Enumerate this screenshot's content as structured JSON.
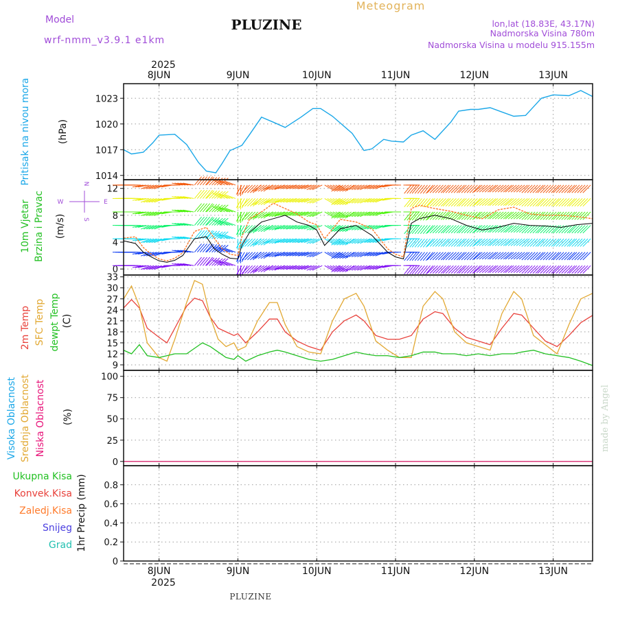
{
  "header": {
    "title": "PLUZINE",
    "meteogram": "Meteogram",
    "model_label": "Model",
    "model_name": "wrf-nmm_v3.9.1 e1km",
    "lonlat": "lon,lat (18.83E, 43.17N)",
    "elevation": "Nadmorska Visina 780m",
    "model_elevation": "Nadmorska Visina u modelu 915.155m",
    "year_top": "2025",
    "year_bottom": "2025",
    "footer": "PLUZINE",
    "watermark": "made by Angel"
  },
  "compass": {
    "N": "N",
    "E": "E",
    "S": "S",
    "W": "W"
  },
  "colors": {
    "pressure": "#1aa7e8",
    "temp_2m": "#e8403a",
    "temp_sfc": "#e2a832",
    "dewpoint": "#22c022",
    "wind_line": "#000000",
    "wind_gust": "#ff7a2a",
    "cloud_high": "#1aa7e8",
    "cloud_mid": "#e2a832",
    "cloud_low": "#e8157a",
    "precip_total": "#22c022",
    "precip_conv": "#e8403a",
    "precip_frozen": "#ff7a2a",
    "precip_snow": "#4a3ee0",
    "precip_graupel": "#22c0b0",
    "compass": "#a04cd8"
  },
  "chart_data": [
    {
      "type": "line",
      "id": "pressure",
      "ylabels": [
        "Pritisak na nivou mora",
        "(hPa)"
      ],
      "ylim": [
        1013.5,
        1024.7
      ],
      "yticks": [
        1014,
        1017,
        1020,
        1023
      ],
      "x_days": [
        7.55,
        7.65,
        7.8,
        7.92,
        8.0,
        8.2,
        8.35,
        8.5,
        8.6,
        8.72,
        8.8,
        8.9,
        9.0,
        9.05,
        9.15,
        9.3,
        9.45,
        9.6,
        9.8,
        9.95,
        10.05,
        10.2,
        10.45,
        10.6,
        10.7,
        10.85,
        10.95,
        11.1,
        11.2,
        11.35,
        11.5,
        11.7,
        11.8,
        11.95,
        12.05,
        12.2,
        12.35,
        12.5,
        12.65,
        12.75,
        12.85,
        13.0,
        13.2,
        13.35,
        13.5
      ],
      "series": [
        {
          "name": "",
          "values": [
            1017.0,
            1016.5,
            1016.7,
            1017.8,
            1018.7,
            1018.8,
            1017.6,
            1015.5,
            1014.5,
            1014.3,
            1015.4,
            1016.9,
            1017.3,
            1017.5,
            1018.8,
            1020.8,
            1020.2,
            1019.6,
            1020.8,
            1021.8,
            1021.8,
            1020.9,
            1018.9,
            1016.9,
            1017.1,
            1018.2,
            1018.0,
            1017.9,
            1018.7,
            1019.2,
            1018.2,
            1020.2,
            1021.5,
            1021.7,
            1021.7,
            1021.9,
            1021.4,
            1020.9,
            1021.0,
            1022.0,
            1023.0,
            1023.4,
            1023.3,
            1023.9,
            1023.2
          ]
        }
      ]
    },
    {
      "type": "line",
      "id": "wind",
      "ylabels": [
        "10m Vjetar",
        "Brzina i Pravac",
        "(m/s)"
      ],
      "ylim": [
        -0.9,
        13.3
      ],
      "yticks": [
        0,
        4,
        8,
        12
      ],
      "x_days": [
        7.55,
        7.7,
        7.8,
        7.9,
        8.0,
        8.1,
        8.2,
        8.3,
        8.45,
        8.6,
        8.7,
        8.8,
        8.9,
        9.0,
        9.05,
        9.15,
        9.3,
        9.45,
        9.6,
        9.75,
        9.9,
        10.0,
        10.1,
        10.3,
        10.5,
        10.7,
        10.9,
        11.0,
        11.1,
        11.2,
        11.3,
        11.5,
        11.7,
        11.9,
        12.1,
        12.3,
        12.5,
        12.7,
        12.9,
        13.1,
        13.3,
        13.5
      ],
      "series": [
        {
          "name": "",
          "values": [
            4.2,
            3.8,
            2.5,
            1.8,
            1.2,
            1.0,
            1.3,
            2.0,
            4.5,
            4.8,
            3.0,
            2.2,
            1.6,
            1.5,
            3.5,
            5.5,
            7.0,
            7.5,
            8.0,
            7.0,
            6.5,
            5.8,
            3.5,
            6.0,
            6.5,
            5.0,
            2.5,
            1.8,
            1.5,
            6.8,
            7.5,
            8.0,
            7.5,
            6.5,
            5.8,
            6.2,
            6.8,
            6.5,
            6.4,
            6.2,
            6.6,
            6.8
          ]
        },
        {
          "name": "",
          "values": [
            4.6,
            4.8,
            3.2,
            2.2,
            1.5,
            1.2,
            1.6,
            2.4,
            5.6,
            6.2,
            4.6,
            3.0,
            2.2,
            2.0,
            4.8,
            7.5,
            8.5,
            9.8,
            9.0,
            8.2,
            7.0,
            6.6,
            4.5,
            7.4,
            7.0,
            6.0,
            3.0,
            2.2,
            1.8,
            9.0,
            9.5,
            9.0,
            8.6,
            8.0,
            7.5,
            8.8,
            9.2,
            8.2,
            8.0,
            8.0,
            7.8,
            7.5
          ]
        }
      ],
      "directions_deg": [
        270,
        270,
        260,
        250,
        250,
        260,
        270,
        280,
        40,
        45,
        50,
        300,
        290,
        180,
        210,
        225,
        235,
        245,
        250,
        250,
        250,
        245,
        120,
        235,
        245,
        250,
        260,
        270,
        90,
        220,
        220,
        225,
        225,
        225,
        230,
        230,
        230,
        225,
        225,
        225,
        225,
        225
      ]
    },
    {
      "type": "line",
      "id": "temperature",
      "ylabels": [
        "2m Temp",
        "SFC Temp",
        "dewpt Temp",
        "(C)"
      ],
      "ylim": [
        7.5,
        33.5
      ],
      "yticks": [
        9,
        12,
        15,
        18,
        21,
        24,
        27,
        30,
        33
      ],
      "x_days": [
        7.55,
        7.65,
        7.75,
        7.85,
        8.0,
        8.1,
        8.2,
        8.35,
        8.45,
        8.55,
        8.65,
        8.75,
        8.85,
        8.95,
        9.0,
        9.1,
        9.25,
        9.4,
        9.5,
        9.6,
        9.75,
        9.9,
        10.05,
        10.2,
        10.35,
        10.5,
        10.6,
        10.75,
        10.9,
        11.05,
        11.2,
        11.35,
        11.5,
        11.6,
        11.75,
        11.9,
        12.05,
        12.2,
        12.35,
        12.5,
        12.6,
        12.75,
        12.9,
        13.05,
        13.2,
        13.35,
        13.5
      ],
      "series": [
        {
          "name": "2m Temp",
          "values": [
            24.5,
            26.8,
            24.5,
            19.0,
            16.5,
            15.0,
            19.0,
            25.0,
            27.2,
            26.5,
            22.0,
            19.0,
            18.0,
            17.0,
            17.5,
            15.0,
            18.0,
            21.5,
            21.5,
            18.0,
            15.5,
            14.0,
            13.0,
            18.0,
            21.0,
            22.6,
            21.0,
            17.0,
            16.0,
            16.0,
            17.0,
            21.5,
            23.5,
            23.0,
            19.0,
            16.5,
            15.5,
            14.5,
            19.0,
            23.0,
            22.6,
            19.0,
            15.5,
            14.0,
            17.0,
            20.5,
            22.5
          ]
        },
        {
          "name": "SFC Temp",
          "values": [
            27.0,
            30.5,
            25.0,
            15.0,
            11.0,
            10.0,
            16.0,
            26.0,
            32.0,
            31.0,
            22.0,
            16.0,
            14.0,
            15.0,
            13.0,
            14.0,
            21.0,
            26.0,
            26.0,
            20.0,
            14.0,
            12.5,
            12.0,
            21.0,
            27.0,
            28.5,
            25.0,
            15.5,
            13.0,
            11.0,
            11.0,
            25.0,
            29.0,
            27.0,
            18.0,
            15.0,
            14.0,
            13.0,
            23.0,
            29.0,
            27.0,
            17.0,
            14.5,
            12.0,
            20.0,
            27.0,
            28.5
          ]
        },
        {
          "name": "dewpt Temp",
          "values": [
            13.0,
            12.0,
            14.5,
            11.5,
            11.0,
            11.5,
            12.0,
            12.0,
            13.5,
            15.0,
            14.0,
            12.5,
            11.0,
            10.5,
            11.5,
            10.0,
            11.5,
            12.5,
            13.0,
            12.5,
            11.5,
            10.5,
            10.0,
            10.5,
            11.5,
            12.5,
            12.0,
            11.5,
            11.5,
            11.0,
            11.5,
            12.5,
            12.5,
            12.0,
            12.0,
            11.5,
            12.0,
            11.5,
            12.0,
            12.0,
            12.5,
            13.0,
            12.0,
            11.5,
            11.0,
            10.0,
            8.8
          ]
        }
      ]
    },
    {
      "type": "line",
      "id": "cloud",
      "ylabels": [
        "Visoka Oblacnost",
        "Srednja Oblacnost",
        "Niska Oblacnost",
        "(%)"
      ],
      "ylim": [
        -5,
        107
      ],
      "yticks": [
        0,
        25,
        50,
        75,
        100
      ],
      "x_days": [
        7.55,
        13.5
      ],
      "series": [
        {
          "name": "Visoka Oblacnost",
          "values": [
            0,
            0
          ]
        },
        {
          "name": "Srednja Oblacnost",
          "values": [
            0,
            0
          ]
        },
        {
          "name": "Niska Oblacnost",
          "values": [
            0,
            0
          ]
        }
      ]
    },
    {
      "type": "bar",
      "id": "precip",
      "ylabels": [
        "1hr Precip (mm)"
      ],
      "legend": [
        "Ukupna Kisa",
        "Konvek.Kisa",
        "Zaledj.Kisa",
        "Snijeg",
        "Grad"
      ],
      "ylim": [
        0,
        1.0
      ],
      "yticks": [
        0,
        0.2,
        0.4,
        0.6,
        0.8
      ],
      "x_days": [
        7.55,
        13.5
      ],
      "series": [
        {
          "name": "Ukupna Kisa",
          "values": [
            0,
            0
          ]
        },
        {
          "name": "Konvek.Kisa",
          "values": [
            0,
            0
          ]
        },
        {
          "name": "Zaledj.Kisa",
          "values": [
            0,
            0
          ]
        },
        {
          "name": "Snijeg",
          "values": [
            0,
            0
          ]
        },
        {
          "name": "Grad",
          "values": [
            0,
            0
          ]
        }
      ]
    }
  ],
  "x_axis": {
    "xlim_days": [
      7.55,
      13.5
    ],
    "tick_days": [
      8,
      9,
      10,
      11,
      12,
      13
    ],
    "labels": [
      "8JUN",
      "9JUN",
      "10JUN",
      "11JUN",
      "12JUN",
      "13JUN"
    ]
  }
}
